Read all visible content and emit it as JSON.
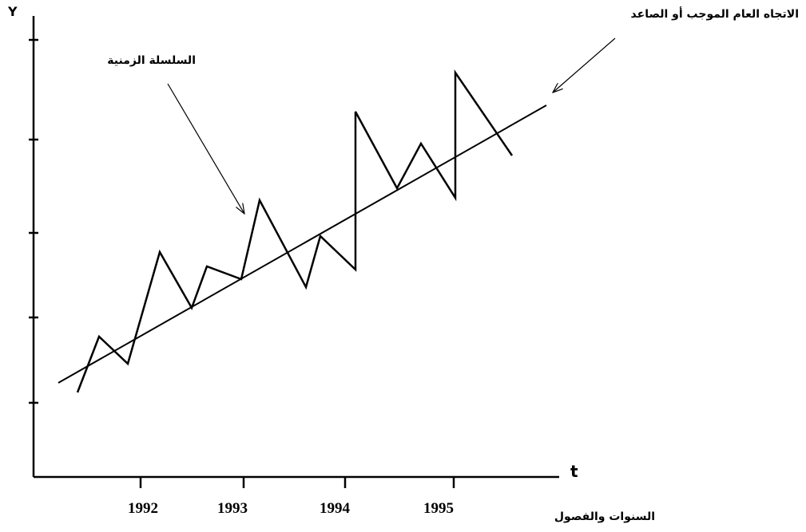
{
  "axes": {
    "y_label": "Y",
    "x_label": "t",
    "x_title": "السنوات والفصول",
    "years": [
      "1992",
      "1993",
      "1994",
      "1995"
    ]
  },
  "annotations": {
    "series": "السلسلة الزمنية",
    "trend": "الاتجاه العام الموجب أو الصاعد"
  }
}
